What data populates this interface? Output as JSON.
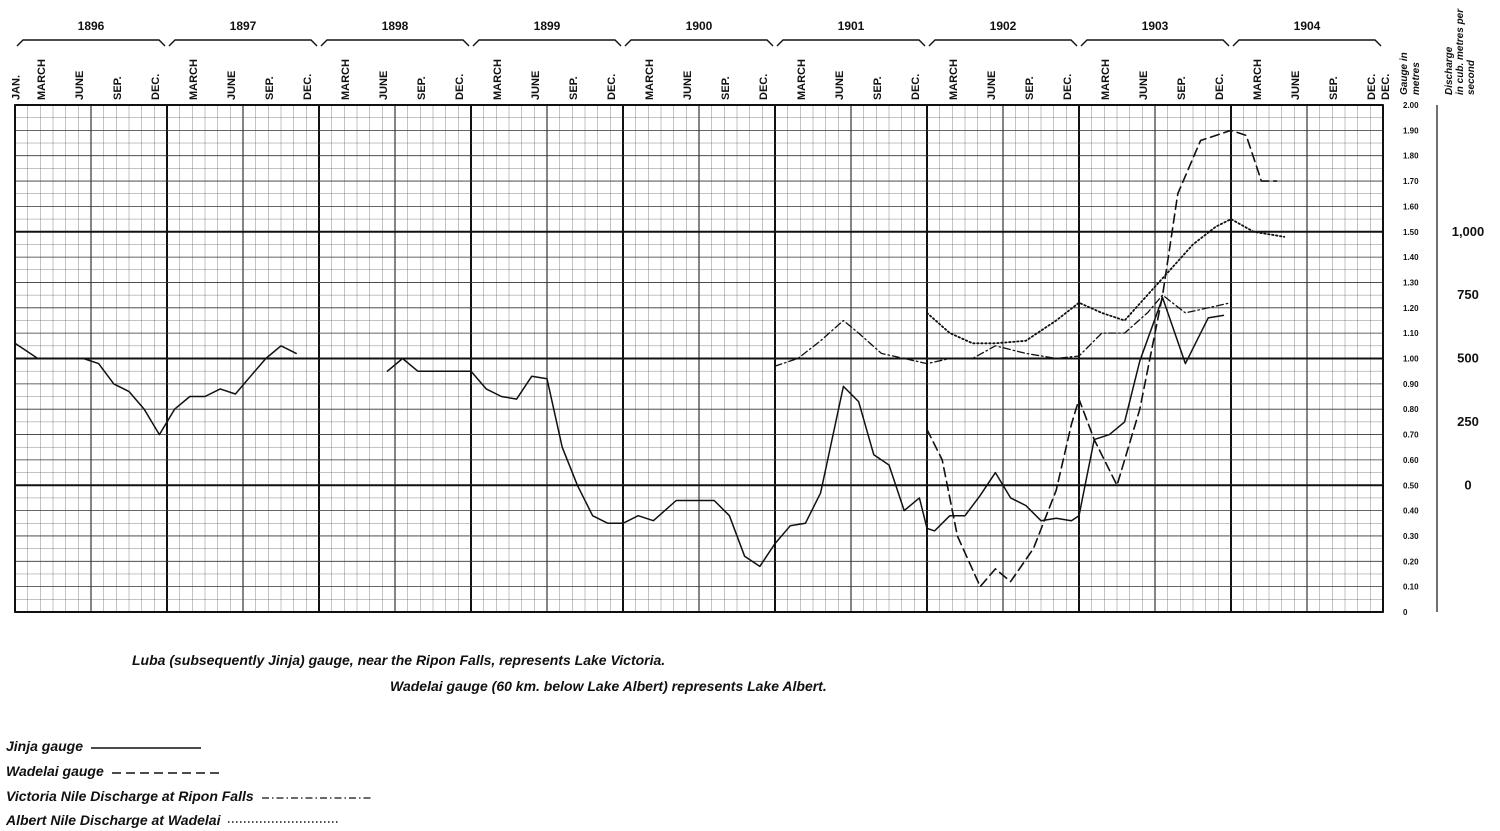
{
  "chart_data": {
    "type": "line",
    "x_unit": "year.fraction (decimal year)",
    "years": [
      "1896",
      "1897",
      "1898",
      "1899",
      "1900",
      "1901",
      "1902",
      "1903",
      "1904"
    ],
    "month_labels": [
      "JAN.",
      "MARCH",
      "JUNE",
      "SEP.",
      "DEC."
    ],
    "xlim": [
      1896.0,
      1905.0
    ],
    "left_axis": {
      "label": "Gauge in metres",
      "ylim": [
        0,
        2.0
      ],
      "ticks": [
        "0",
        "0.10",
        "0.20",
        "0.30",
        "0.40",
        "0.50",
        "0.60",
        "0.70",
        "0.80",
        "0.90",
        "1.00",
        "1.10",
        "1.20",
        "1.30",
        "1.40",
        "1.50",
        "1.60",
        "1.70",
        "1.80",
        "1.90",
        "2.00"
      ]
    },
    "right_axis": {
      "label": "Discharge in cub. metres per second",
      "ticks": [
        {
          "label": "0",
          "gauge_equiv": 0.5
        },
        {
          "label": "250",
          "gauge_equiv": 0.75
        },
        {
          "label": "500",
          "gauge_equiv": 1.0
        },
        {
          "label": "750",
          "gauge_equiv": 1.25
        },
        {
          "label": "1,000",
          "gauge_equiv": 1.5
        }
      ]
    },
    "grid": true,
    "series": [
      {
        "name": "Jinja gauge",
        "style": "solid",
        "segments": [
          [
            [
              1896.0,
              1.06
            ],
            [
              1896.15,
              1.0
            ],
            [
              1896.45,
              1.0
            ],
            [
              1896.55,
              0.98
            ],
            [
              1896.65,
              0.9
            ],
            [
              1896.75,
              0.87
            ],
            [
              1896.85,
              0.8
            ],
            [
              1896.95,
              0.7
            ],
            [
              1897.05,
              0.8
            ],
            [
              1897.15,
              0.85
            ],
            [
              1897.25,
              0.85
            ],
            [
              1897.35,
              0.88
            ],
            [
              1897.45,
              0.86
            ],
            [
              1897.55,
              0.93
            ],
            [
              1897.65,
              1.0
            ],
            [
              1897.75,
              1.05
            ],
            [
              1897.85,
              1.02
            ]
          ],
          [
            [
              1898.45,
              0.95
            ],
            [
              1898.55,
              1.0
            ],
            [
              1898.65,
              0.95
            ],
            [
              1898.75,
              0.95
            ],
            [
              1899.0,
              0.95
            ],
            [
              1899.1,
              0.88
            ],
            [
              1899.2,
              0.85
            ],
            [
              1899.3,
              0.84
            ],
            [
              1899.4,
              0.93
            ],
            [
              1899.5,
              0.92
            ],
            [
              1899.6,
              0.65
            ],
            [
              1899.7,
              0.5
            ],
            [
              1899.8,
              0.38
            ],
            [
              1899.9,
              0.35
            ],
            [
              1900.0,
              0.35
            ],
            [
              1900.1,
              0.38
            ],
            [
              1900.2,
              0.36
            ],
            [
              1900.35,
              0.44
            ],
            [
              1900.6,
              0.44
            ],
            [
              1900.7,
              0.38
            ],
            [
              1900.8,
              0.22
            ],
            [
              1900.9,
              0.18
            ],
            [
              1901.0,
              0.27
            ],
            [
              1901.1,
              0.34
            ],
            [
              1901.2,
              0.35
            ],
            [
              1901.3,
              0.47
            ],
            [
              1901.45,
              0.89
            ],
            [
              1901.55,
              0.83
            ],
            [
              1901.65,
              0.62
            ],
            [
              1901.75,
              0.58
            ],
            [
              1901.85,
              0.4
            ],
            [
              1901.95,
              0.45
            ],
            [
              1902.0,
              0.33
            ],
            [
              1902.05,
              0.32
            ],
            [
              1902.15,
              0.38
            ],
            [
              1902.25,
              0.38
            ],
            [
              1902.35,
              0.46
            ],
            [
              1902.45,
              0.55
            ],
            [
              1902.55,
              0.45
            ],
            [
              1902.65,
              0.42
            ],
            [
              1902.75,
              0.36
            ],
            [
              1902.85,
              0.37
            ],
            [
              1902.95,
              0.36
            ],
            [
              1903.0,
              0.38
            ],
            [
              1903.1,
              0.68
            ],
            [
              1903.2,
              0.7
            ],
            [
              1903.3,
              0.75
            ],
            [
              1903.4,
              0.99
            ],
            [
              1903.55,
              1.24
            ],
            [
              1903.7,
              0.98
            ],
            [
              1903.85,
              1.16
            ],
            [
              1903.95,
              1.17
            ]
          ]
        ]
      },
      {
        "name": "Wadelai gauge",
        "style": "dashed",
        "segments": [
          [
            [
              1902.0,
              0.72
            ],
            [
              1902.1,
              0.6
            ],
            [
              1902.2,
              0.3
            ],
            [
              1902.35,
              0.1
            ],
            [
              1902.45,
              0.17
            ],
            [
              1902.55,
              0.12
            ],
            [
              1902.7,
              0.25
            ],
            [
              1902.85,
              0.48
            ],
            [
              1902.95,
              0.74
            ],
            [
              1903.0,
              0.84
            ],
            [
              1903.1,
              0.68
            ],
            [
              1903.25,
              0.5
            ],
            [
              1903.4,
              0.8
            ],
            [
              1903.55,
              1.25
            ],
            [
              1903.65,
              1.65
            ],
            [
              1903.8,
              1.86
            ],
            [
              1904.0,
              1.9
            ],
            [
              1904.1,
              1.88
            ],
            [
              1904.2,
              1.7
            ],
            [
              1904.3,
              1.7
            ]
          ]
        ]
      },
      {
        "name": "Victoria Nile Discharge at Ripon Falls",
        "style": "dash-dot",
        "segments": [
          [
            [
              1901.0,
              0.97
            ],
            [
              1901.15,
              1.0
            ],
            [
              1901.3,
              1.07
            ],
            [
              1901.45,
              1.15
            ],
            [
              1901.55,
              1.1
            ],
            [
              1901.7,
              1.02
            ],
            [
              1901.85,
              1.0
            ],
            [
              1902.0,
              0.98
            ],
            [
              1902.15,
              1.0
            ],
            [
              1902.3,
              1.0
            ],
            [
              1902.45,
              1.05
            ],
            [
              1902.65,
              1.02
            ],
            [
              1902.85,
              1.0
            ],
            [
              1903.0,
              1.01
            ],
            [
              1903.15,
              1.1
            ],
            [
              1903.3,
              1.1
            ],
            [
              1903.45,
              1.18
            ],
            [
              1903.55,
              1.25
            ],
            [
              1903.7,
              1.18
            ],
            [
              1903.85,
              1.2
            ],
            [
              1904.0,
              1.22
            ]
          ]
        ]
      },
      {
        "name": "Albert Nile Discharge at Wadelai",
        "style": "dotted",
        "segments": [
          [
            [
              1902.0,
              1.18
            ],
            [
              1902.15,
              1.1
            ],
            [
              1902.3,
              1.06
            ],
            [
              1902.45,
              1.06
            ],
            [
              1902.65,
              1.07
            ],
            [
              1902.85,
              1.15
            ],
            [
              1903.0,
              1.22
            ],
            [
              1903.15,
              1.18
            ],
            [
              1903.3,
              1.15
            ],
            [
              1903.45,
              1.25
            ],
            [
              1903.6,
              1.35
            ],
            [
              1903.75,
              1.45
            ],
            [
              1903.9,
              1.52
            ],
            [
              1904.0,
              1.55
            ],
            [
              1904.15,
              1.5
            ],
            [
              1904.35,
              1.48
            ]
          ]
        ]
      }
    ],
    "annotations": [
      "Luba (subsequently Jinja) gauge, near the Ripon Falls, represents  Lake Victoria.",
      "Wadelai gauge (60 km. below Lake Albert) represents Lake Albert."
    ],
    "legend_placement": "bottom-left"
  },
  "legend": [
    {
      "label": "Jinja gauge",
      "style": "solid"
    },
    {
      "label": "Wadelai gauge",
      "style": "dashed"
    },
    {
      "label": "Victoria Nile Discharge at Ripon Falls",
      "style": "dash-dot"
    },
    {
      "label": "Albert Nile Discharge at Wadelai",
      "style": "dotted"
    }
  ]
}
